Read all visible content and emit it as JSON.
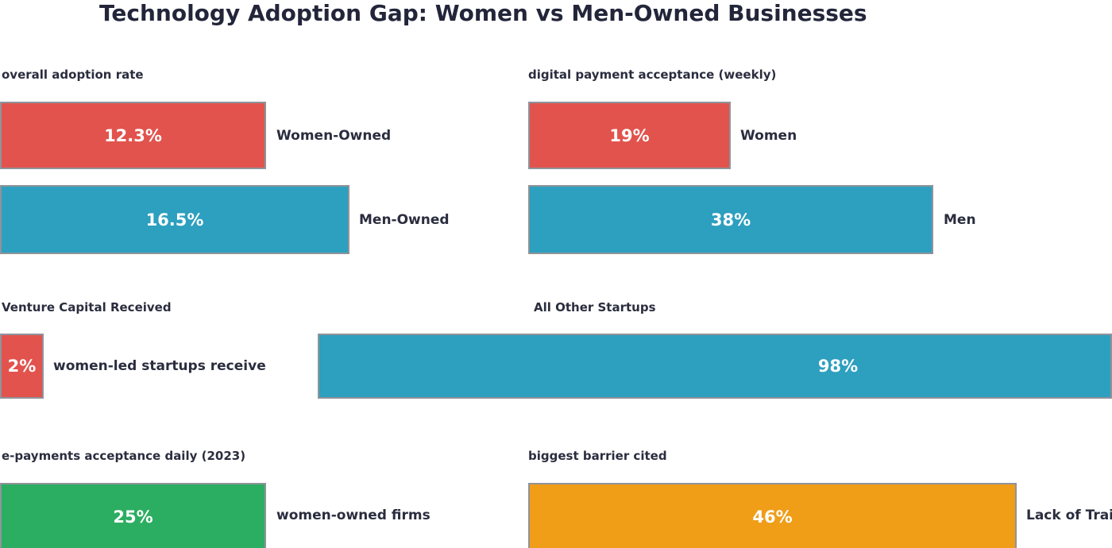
{
  "title": "Technology Adoption Gap: Women vs Men-Owned Businesses",
  "palette": {
    "red": "#e2534d",
    "blue": "#2d9fbf",
    "green": "#2bae61",
    "orange": "#f09d18",
    "text_navy": "#2a2d3e",
    "bar_border": "#8f949b",
    "background": "#ffffff"
  },
  "chart_data": {
    "type": "bar",
    "title": "Technology Adoption Gap: Women vs Men-Owned Businesses",
    "orientation": "horizontal",
    "grid": false,
    "legend": false,
    "value_labels_inside_bars": true,
    "category_labels_right_of_bars": true,
    "sections": [
      {
        "title": "overall adoption rate",
        "bars": [
          {
            "label": "Women-Owned",
            "value": 12.3,
            "display": "12.3%",
            "color": "red"
          },
          {
            "label": "Men-Owned",
            "value": 16.5,
            "display": "16.5%",
            "color": "blue"
          }
        ]
      },
      {
        "title": "digital payment acceptance (weekly)",
        "bars": [
          {
            "label": "Women",
            "value": 19,
            "display": "19%",
            "color": "red"
          },
          {
            "label": "Men",
            "value": 38,
            "display": "38%",
            "color": "blue"
          }
        ]
      },
      {
        "title": "Venture Capital Received",
        "bars": [
          {
            "label": "women-led startups receive",
            "value": 2,
            "display": "2%",
            "color": "red"
          }
        ]
      },
      {
        "title": "All Other Startups",
        "bars": [
          {
            "label": "",
            "value": 98,
            "display": "98%",
            "color": "blue"
          }
        ]
      },
      {
        "title": "e-payments acceptance daily (2023)",
        "bars": [
          {
            "label": "women-owned firms",
            "value": 25,
            "display": "25%",
            "color": "green"
          }
        ]
      },
      {
        "title": "biggest barrier cited",
        "bars": [
          {
            "label": "Lack of Training",
            "value": 46,
            "display": "46%",
            "color": "orange"
          }
        ]
      }
    ]
  }
}
